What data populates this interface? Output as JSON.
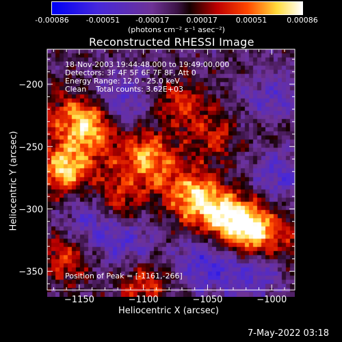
{
  "colorbar": {
    "tick_labels": [
      "-0.00086",
      "-0.00051",
      "-0.00017",
      "0.00017",
      "0.00051",
      "0.00086"
    ],
    "tick_values": [
      -0.00086,
      -0.00051,
      -0.00017,
      0.00017,
      0.00051,
      0.00086
    ],
    "range": [
      -0.00086,
      0.00086
    ],
    "unit_label": "(photons cm⁻² s⁻¹ asec⁻²)",
    "colormap": "blue-purple-red-yellow-white"
  },
  "info": {
    "line1": "18-Nov-2003 19:44:48.000 to 19:49:00.000",
    "line2": "Detectors: 3F 4F 5F 6F 7F 8F, Att 0",
    "line3": "Energy Range: 12.0 - 25.0 keV",
    "line4": "Clean    Total counts: 3.62E+03",
    "peak": "Position of Peak = [-1161,-266]"
  },
  "footer": {
    "timestamp": "7-May-2022 03:18"
  },
  "chart_data": {
    "type": "heatmap",
    "title": "Reconstructed RHESSI Image",
    "xlabel": "Heliocentric X (arcsec)",
    "ylabel": "Heliocentric Y (arcsec)",
    "xlim": [
      -1175,
      -982
    ],
    "ylim": [
      -365,
      -172
    ],
    "x_ticks": [
      -1150,
      -1100,
      -1050,
      -1000
    ],
    "y_ticks": [
      -200,
      -250,
      -300,
      -350
    ],
    "x_tick_labels": [
      "−1150",
      "−1100",
      "−1050",
      "−1000"
    ],
    "y_tick_labels": [
      "−200",
      "−250",
      "−300",
      "−350"
    ],
    "grid": false,
    "bright_regions": [
      {
        "x": -1161,
        "y": -266,
        "level": 1.0
      },
      {
        "x": -1142,
        "y": -228,
        "level": 0.85
      },
      {
        "x": -1120,
        "y": -290,
        "level": 0.6
      },
      {
        "x": -1095,
        "y": -255,
        "level": 0.55
      },
      {
        "x": -1060,
        "y": -290,
        "level": 0.7
      },
      {
        "x": -1035,
        "y": -305,
        "level": 0.7
      },
      {
        "x": -1015,
        "y": -315,
        "level": 0.85
      },
      {
        "x": -1070,
        "y": -215,
        "level": 0.5
      },
      {
        "x": -1160,
        "y": -335,
        "level": 0.55
      },
      {
        "x": -1100,
        "y": -355,
        "level": 0.6
      },
      {
        "x": -1045,
        "y": -240,
        "level": 0.45
      },
      {
        "x": -1000,
        "y": -230,
        "level": 0.3
      }
    ],
    "dark_regions": [
      {
        "x": -1120,
        "y": -215,
        "level": -0.55
      },
      {
        "x": -1000,
        "y": -215,
        "level": -0.55
      },
      {
        "x": -995,
        "y": -270,
        "level": -0.45
      },
      {
        "x": -1050,
        "y": -340,
        "level": -0.6
      },
      {
        "x": -1140,
        "y": -305,
        "level": -0.5
      },
      {
        "x": -1010,
        "y": -345,
        "level": -0.5
      },
      {
        "x": -1110,
        "y": -325,
        "level": -0.45
      }
    ]
  }
}
